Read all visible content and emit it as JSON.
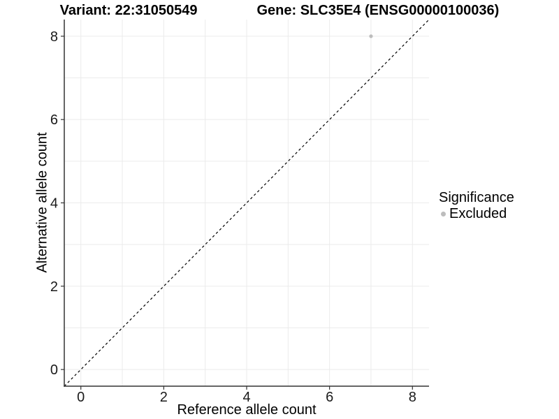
{
  "chart_data": {
    "type": "scatter",
    "title_left": "Variant: 22:31050549",
    "title_right": "Gene: SLC35E4 (ENSG00000100036)",
    "xlabel": "Reference allele count",
    "ylabel": "Alternative allele count",
    "xlim": [
      -0.4,
      8.4
    ],
    "ylim": [
      -0.4,
      8.4
    ],
    "xticks": [
      0,
      2,
      4,
      6,
      8
    ],
    "yticks": [
      0,
      2,
      4,
      6,
      8
    ],
    "gridlines": {
      "x": [
        0,
        1,
        2,
        3,
        4,
        5,
        6,
        7,
        8
      ],
      "y": [
        0,
        1,
        2,
        3,
        4,
        5,
        6,
        7,
        8
      ]
    },
    "reference_line": {
      "type": "identity",
      "style": "dashed",
      "color": "#000000"
    },
    "points": [
      {
        "x": 7,
        "y": 8,
        "series": "Excluded"
      }
    ],
    "legend": {
      "title": "Significance",
      "position": "right",
      "items": [
        {
          "label": "Excluded",
          "color": "#bdbdbd"
        }
      ]
    },
    "colors": {
      "background": "#ffffff",
      "grid": "#ebebeb",
      "axis_line": "#333333",
      "tick_text": "#1a1a1a",
      "title_text": "#000000"
    },
    "grid_on": true,
    "legend_position": "right"
  }
}
